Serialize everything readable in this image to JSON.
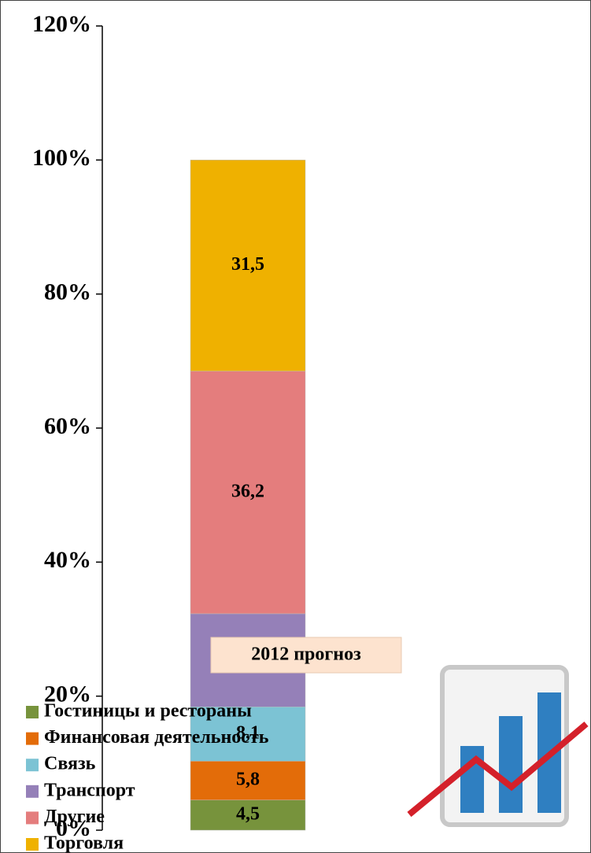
{
  "chart_data": {
    "type": "stacked_bar",
    "categories": [
      "2012 прогноз"
    ],
    "series": [
      {
        "name": "Гостиницы и рестораны",
        "color": "#77933c",
        "values": [
          4.5
        ],
        "value_labels": [
          "4,5"
        ]
      },
      {
        "name": "Финансовая деятельность",
        "color": "#e36c09",
        "values": [
          5.8
        ],
        "value_labels": [
          "5,8"
        ]
      },
      {
        "name": "Связь",
        "color": "#7cc3d4",
        "values": [
          8.1
        ],
        "value_labels": [
          "8,1"
        ]
      },
      {
        "name": "Транспорт",
        "color": "#9580b8",
        "values": [
          13.9
        ],
        "value_labels": [
          null
        ]
      },
      {
        "name": "Другие",
        "color": "#e47d7d",
        "values": [
          36.2
        ],
        "value_labels": [
          "36,2"
        ]
      },
      {
        "name": "Торговля",
        "color": "#efb100",
        "values": [
          31.5
        ],
        "value_labels": [
          "31,5"
        ]
      }
    ],
    "ylim": [
      0,
      120
    ],
    "yticks": [
      {
        "value": 0,
        "label": "0%"
      },
      {
        "value": 20,
        "label": "20%"
      },
      {
        "value": 40,
        "label": "40%"
      },
      {
        "value": 60,
        "label": "60%"
      },
      {
        "value": 80,
        "label": "80%"
      },
      {
        "value": 100,
        "label": "100%"
      },
      {
        "value": 120,
        "label": "120%"
      }
    ],
    "legend": "bottom-left"
  }
}
